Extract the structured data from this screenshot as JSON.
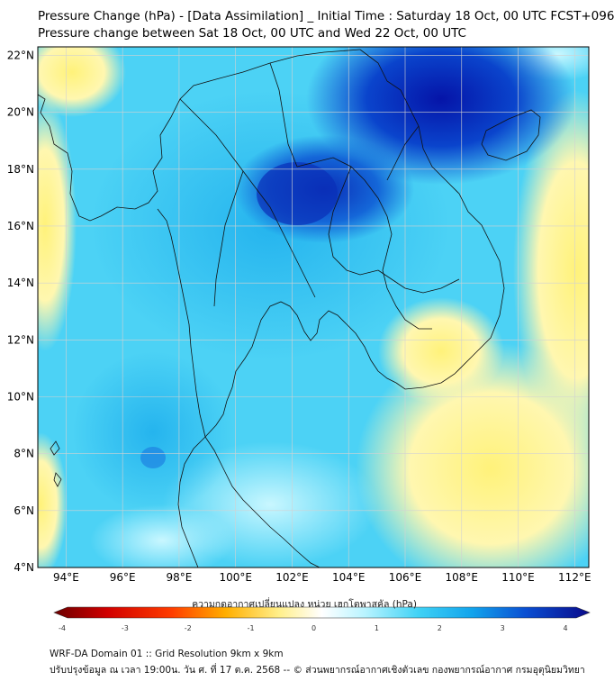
{
  "header": {
    "title_line1": "Pressure Change (hPa) - [Data Assimilation] _ Initial Time : Saturday 18 Oct, 00 UTC FCST+096",
    "title_line2": "Pressure change between Sat 18 Oct, 00 UTC and Wed 22 Oct, 00 UTC"
  },
  "map": {
    "lat_labels": [
      "22°N",
      "20°N",
      "18°N",
      "16°N",
      "14°N",
      "12°N",
      "10°N",
      "8°N",
      "6°N",
      "4°N"
    ],
    "lat_values": [
      22,
      20,
      18,
      16,
      14,
      12,
      10,
      8,
      6,
      4
    ],
    "lon_labels": [
      "94°E",
      "96°E",
      "98°E",
      "100°E",
      "102°E",
      "104°E",
      "106°E",
      "108°E",
      "110°E",
      "112°E"
    ],
    "lon_values": [
      94,
      96,
      98,
      100,
      102,
      104,
      106,
      108,
      110,
      112
    ],
    "extent": {
      "lon_min": 93,
      "lon_max": 112.5,
      "lat_min": 4,
      "lat_max": 22.3
    }
  },
  "colorbar": {
    "label": "ความกดอากาศเปลี่ยนแปลง หน่วย เฮกโตพาสคัล (hPa)",
    "ticks": [
      "-4",
      "-3",
      "-2",
      "-1",
      "0",
      "1",
      "2",
      "3",
      "4"
    ],
    "range": [
      -4,
      4
    ],
    "colors": {
      "neg_strong": "#7a0000",
      "neg_mid": "#ff2a00",
      "neg_weak": "#ffd84a",
      "zero": "#ffffff",
      "pos_weak": "#8ff0ff",
      "pos_mid": "#18b8f0",
      "pos_strong": "#0a1f9c"
    }
  },
  "footer": {
    "line1": "WRF-DA Domain 01 :: Grid Resolution 9km x 9km",
    "line2": "ปรับปรุงข้อมูล ณ เวลา 19:00น. วัน ศ. ที่ 17 ต.ค. 2568 -- © ส่วนพยากรณ์อากาศเชิงตัวเลข กองพยากรณ์อากาศ กรมอุตุนิยมวิทยา"
  }
}
